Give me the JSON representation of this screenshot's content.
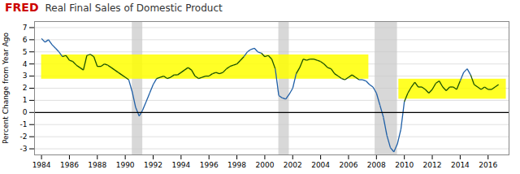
{
  "chart_data": {
    "type": "line",
    "title": "Real Final Sales of Domestic Product",
    "annotations": [
      {
        "text": "FRED",
        "color": "#cc0000"
      }
    ],
    "ylabel": "Percent Change from Year Ago",
    "color": "#1f5fa6",
    "x": [
      1984.0,
      1984.25,
      1984.5,
      1984.75,
      1985.0,
      1985.25,
      1985.5,
      1985.75,
      1986.0,
      1986.25,
      1986.5,
      1986.75,
      1987.0,
      1987.25,
      1987.5,
      1987.75,
      1988.0,
      1988.25,
      1988.5,
      1988.75,
      1989.0,
      1989.25,
      1989.5,
      1989.75,
      1990.0,
      1990.25,
      1990.5,
      1990.75,
      1991.0,
      1991.25,
      1991.5,
      1991.75,
      1992.0,
      1992.25,
      1992.5,
      1992.75,
      1993.0,
      1993.25,
      1993.5,
      1993.75,
      1994.0,
      1994.25,
      1994.5,
      1994.75,
      1995.0,
      1995.25,
      1995.5,
      1995.75,
      1996.0,
      1996.25,
      1996.5,
      1996.75,
      1997.0,
      1997.25,
      1997.5,
      1997.75,
      1998.0,
      1998.25,
      1998.5,
      1998.75,
      1999.0,
      1999.25,
      1999.5,
      1999.75,
      2000.0,
      2000.25,
      2000.5,
      2000.75,
      2001.0,
      2001.25,
      2001.5,
      2001.75,
      2002.0,
      2002.25,
      2002.5,
      2002.75,
      2003.0,
      2003.25,
      2003.5,
      2003.75,
      2004.0,
      2004.25,
      2004.5,
      2004.75,
      2005.0,
      2005.25,
      2005.5,
      2005.75,
      2006.0,
      2006.25,
      2006.5,
      2006.75,
      2007.0,
      2007.25,
      2007.5,
      2007.75,
      2008.0,
      2008.25,
      2008.5,
      2008.75,
      2009.0,
      2009.25,
      2009.5,
      2009.75,
      2010.0,
      2010.25,
      2010.5,
      2010.75,
      2011.0,
      2011.25,
      2011.5,
      2011.75,
      2012.0,
      2012.25,
      2012.5,
      2012.75,
      2013.0,
      2013.25,
      2013.5,
      2013.75,
      2014.0,
      2014.25,
      2014.5,
      2014.75,
      2015.0,
      2015.25,
      2015.5,
      2015.75,
      2016.0,
      2016.25,
      2016.5,
      2016.75
    ],
    "values": [
      6.1,
      5.8,
      6.0,
      5.6,
      5.3,
      5.0,
      4.6,
      4.7,
      4.3,
      4.2,
      3.9,
      3.7,
      3.5,
      4.7,
      4.8,
      4.6,
      3.8,
      3.8,
      4.0,
      3.9,
      3.7,
      3.5,
      3.3,
      3.1,
      2.9,
      2.7,
      1.7,
      0.4,
      -0.3,
      0.2,
      0.9,
      1.6,
      2.3,
      2.8,
      2.9,
      3.0,
      2.8,
      2.9,
      3.1,
      3.1,
      3.3,
      3.5,
      3.7,
      3.5,
      3.0,
      2.8,
      2.9,
      3.0,
      3.0,
      3.2,
      3.3,
      3.2,
      3.3,
      3.6,
      3.8,
      3.9,
      4.0,
      4.3,
      4.6,
      5.0,
      5.2,
      5.3,
      5.0,
      4.9,
      4.6,
      4.7,
      4.4,
      3.6,
      1.4,
      1.2,
      1.1,
      1.5,
      2.0,
      3.2,
      3.7,
      4.4,
      4.3,
      4.4,
      4.4,
      4.3,
      4.2,
      4.0,
      3.7,
      3.6,
      3.2,
      3.0,
      2.8,
      2.7,
      2.9,
      3.1,
      2.9,
      2.7,
      2.7,
      2.6,
      2.3,
      2.1,
      1.6,
      0.6,
      -0.4,
      -1.9,
      -2.9,
      -3.25,
      -2.6,
      -1.4,
      0.9,
      1.6,
      2.1,
      2.5,
      2.1,
      2.1,
      1.9,
      1.6,
      1.9,
      2.4,
      2.6,
      2.1,
      1.8,
      2.1,
      2.1,
      1.9,
      2.6,
      3.3,
      3.6,
      3.1,
      2.3,
      2.1,
      1.9,
      2.1,
      1.9,
      1.9,
      2.1,
      2.3
    ],
    "xlim": [
      1983.5,
      2017.5
    ],
    "xticks": [
      1984,
      1986,
      1988,
      1990,
      1992,
      1994,
      1996,
      1998,
      2000,
      2002,
      2004,
      2006,
      2008,
      2010,
      2012,
      2014,
      2016
    ],
    "ylim": [
      -3.5,
      7.5
    ],
    "yticks": [
      -3,
      -2,
      -1,
      0,
      1,
      2,
      3,
      4,
      5,
      6,
      7
    ],
    "grid": "y",
    "recession_bands": [
      {
        "x0": 1990.5,
        "x1": 1991.25,
        "color": "#c8c8c8"
      },
      {
        "x0": 2001.0,
        "x1": 2001.75,
        "color": "#c8c8c8"
      },
      {
        "x0": 2007.9,
        "x1": 2009.5,
        "color": "#c8c8c8"
      }
    ],
    "highlight_bands": [
      {
        "x0": 1984.0,
        "x1": 2007.45,
        "y0": 2.75,
        "y1": 4.75,
        "color": "#ffff00",
        "line_color": "#1a5200"
      },
      {
        "x0": 2009.6,
        "x1": 2017.3,
        "y0": 1.1,
        "y1": 2.75,
        "color": "#ffff00",
        "line_color": "#1a5200"
      }
    ],
    "hlines": [
      {
        "y": 0,
        "color": "#000000"
      }
    ]
  }
}
